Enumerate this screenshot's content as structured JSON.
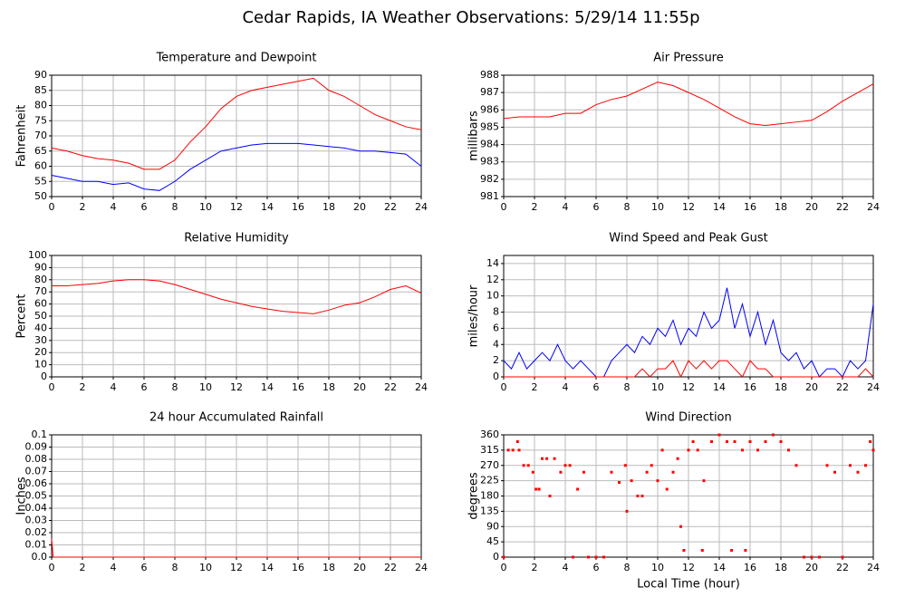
{
  "title": "Cedar Rapids, IA Weather Observations: 5/29/14 11:55p",
  "chart_data": [
    {
      "type": "line",
      "title": "Temperature and Dewpoint",
      "ylabel": "Fahrenheit",
      "xlim": [
        0,
        24
      ],
      "xticks": [
        0,
        2,
        4,
        6,
        8,
        10,
        12,
        14,
        16,
        18,
        20,
        22,
        24
      ],
      "ylim": [
        50,
        90
      ],
      "yticks": [
        50,
        55,
        60,
        65,
        70,
        75,
        80,
        85,
        90
      ],
      "grid": true,
      "x": [
        0,
        1,
        2,
        3,
        4,
        5,
        6,
        7,
        8,
        9,
        10,
        11,
        12,
        13,
        14,
        15,
        16,
        17,
        18,
        19,
        20,
        21,
        22,
        23,
        24
      ],
      "series": [
        {
          "color": "#ff0000",
          "values": [
            66,
            65,
            63.5,
            62.5,
            62,
            61,
            59,
            59,
            62,
            68,
            73,
            79,
            83,
            85,
            86,
            87,
            88,
            89,
            85,
            83,
            80,
            77,
            75,
            73,
            72
          ]
        },
        {
          "color": "#0000ff",
          "values": [
            57,
            56,
            55,
            55,
            54,
            54.5,
            52.5,
            52,
            55,
            59,
            62,
            65,
            66,
            67,
            67.5,
            67.5,
            67.5,
            67,
            66.5,
            66,
            65,
            65,
            64.5,
            64,
            60
          ]
        }
      ]
    },
    {
      "type": "line",
      "title": "Air Pressure",
      "ylabel": "millibars",
      "xlim": [
        0,
        24
      ],
      "xticks": [
        0,
        2,
        4,
        6,
        8,
        10,
        12,
        14,
        16,
        18,
        20,
        22,
        24
      ],
      "ylim": [
        981,
        988
      ],
      "yticks": [
        981,
        982,
        983,
        984,
        985,
        986,
        987,
        988
      ],
      "grid": true,
      "x": [
        0,
        1,
        2,
        3,
        4,
        5,
        6,
        7,
        8,
        9,
        10,
        11,
        12,
        13,
        14,
        15,
        16,
        17,
        18,
        19,
        20,
        21,
        22,
        23,
        24
      ],
      "series": [
        {
          "color": "#ff0000",
          "values": [
            985.5,
            985.6,
            985.6,
            985.6,
            985.8,
            985.8,
            986.3,
            986.6,
            986.8,
            987.2,
            987.6,
            987.4,
            987,
            986.6,
            986.1,
            985.6,
            985.2,
            985.1,
            985.2,
            985.3,
            985.4,
            985.9,
            986.5,
            987,
            987.5
          ]
        }
      ]
    },
    {
      "type": "line",
      "title": "Relative Humidity",
      "ylabel": "Percent",
      "xlim": [
        0,
        24
      ],
      "xticks": [
        0,
        2,
        4,
        6,
        8,
        10,
        12,
        14,
        16,
        18,
        20,
        22,
        24
      ],
      "ylim": [
        0,
        100
      ],
      "yticks": [
        0,
        10,
        20,
        30,
        40,
        50,
        60,
        70,
        80,
        90,
        100
      ],
      "grid": true,
      "x": [
        0,
        1,
        2,
        3,
        4,
        5,
        6,
        7,
        8,
        9,
        10,
        11,
        12,
        13,
        14,
        15,
        16,
        17,
        18,
        19,
        20,
        21,
        22,
        23,
        24
      ],
      "series": [
        {
          "color": "#ff0000",
          "values": [
            75,
            75,
            76,
            77,
            79,
            80,
            80,
            79,
            76,
            72,
            68,
            64,
            61,
            58,
            56,
            54,
            53,
            52,
            55,
            59,
            61,
            66,
            72,
            75,
            69
          ]
        }
      ]
    },
    {
      "type": "line",
      "title": "Wind Speed and Peak Gust",
      "ylabel": "miles/hour",
      "xlim": [
        0,
        24
      ],
      "xticks": [
        0,
        2,
        4,
        6,
        8,
        10,
        12,
        14,
        16,
        18,
        20,
        22,
        24
      ],
      "ylim": [
        0,
        15
      ],
      "yticks": [
        0,
        2,
        4,
        6,
        8,
        10,
        12,
        14
      ],
      "grid": true,
      "x": [
        0,
        0.5,
        1,
        1.5,
        2,
        2.5,
        3,
        3.5,
        4,
        4.5,
        5,
        5.5,
        6,
        6.5,
        7,
        7.5,
        8,
        8.5,
        9,
        9.5,
        10,
        10.5,
        11,
        11.5,
        12,
        12.5,
        13,
        13.5,
        14,
        14.5,
        15,
        15.5,
        16,
        16.5,
        17,
        17.5,
        18,
        18.5,
        19,
        19.5,
        20,
        20.5,
        21,
        21.5,
        22,
        22.5,
        23,
        23.5,
        24
      ],
      "series": [
        {
          "color": "#0000ff",
          "values": [
            2,
            1,
            3,
            1,
            2,
            3,
            2,
            4,
            2,
            1,
            2,
            1,
            0,
            0,
            2,
            3,
            4,
            3,
            5,
            4,
            6,
            5,
            7,
            4,
            6,
            5,
            8,
            6,
            7,
            11,
            6,
            9,
            5,
            8,
            4,
            7,
            3,
            2,
            3,
            1,
            2,
            0,
            1,
            1,
            0,
            2,
            1,
            2,
            9
          ]
        },
        {
          "color": "#ff0000",
          "values": [
            0,
            0,
            0,
            0,
            0,
            0,
            0,
            0,
            0,
            0,
            0,
            0,
            0,
            0,
            0,
            0,
            0,
            0,
            1,
            0,
            1,
            1,
            2,
            0,
            2,
            1,
            2,
            1,
            2,
            2,
            1,
            0,
            2,
            1,
            1,
            0,
            0,
            0,
            0,
            0,
            0,
            0,
            0,
            0,
            0,
            0,
            0,
            1,
            0
          ]
        }
      ]
    },
    {
      "type": "line",
      "title": "24 hour Accumulated Rainfall",
      "ylabel": "Inches",
      "xlim": [
        0,
        24
      ],
      "xticks": [
        0,
        2,
        4,
        6,
        8,
        10,
        12,
        14,
        16,
        18,
        20,
        22,
        24
      ],
      "ylim": [
        0,
        0.1
      ],
      "yticks": [
        {
          "value": 0,
          "label": "0.0"
        },
        0.01,
        0.02,
        0.03,
        0.04,
        0.05,
        0.06,
        0.07,
        0.08,
        0.09,
        0.1
      ],
      "grid": true,
      "x": [
        0,
        0.05,
        0.1,
        24
      ],
      "series": [
        {
          "color": "#ff0000",
          "values": [
            0.015,
            0.008,
            0,
            0
          ]
        }
      ]
    },
    {
      "type": "scatter",
      "title": "Wind Direction",
      "ylabel": "degrees",
      "xlabel": "Local Time (hour)",
      "xlim": [
        0,
        24
      ],
      "xticks": [
        0,
        2,
        4,
        6,
        8,
        10,
        12,
        14,
        16,
        18,
        20,
        22,
        24
      ],
      "ylim": [
        0,
        360
      ],
      "yticks": [
        0,
        45,
        90,
        135,
        180,
        225,
        270,
        315,
        360
      ],
      "grid": true,
      "x": [
        0,
        0.3,
        0.6,
        0.9,
        1,
        1.3,
        1.6,
        1.9,
        2.1,
        2.3,
        2.5,
        2.8,
        3,
        3.3,
        3.7,
        4,
        4.3,
        4.5,
        4.8,
        5.2,
        5.5,
        6,
        6.5,
        7,
        7.5,
        7.9,
        8,
        8.3,
        8.7,
        9,
        9.3,
        9.6,
        10,
        10.3,
        10.6,
        11,
        11.3,
        11.5,
        11.7,
        12,
        12.3,
        12.6,
        12.9,
        13,
        13.5,
        14,
        14.5,
        14.8,
        15,
        15.5,
        15.7,
        16,
        16.5,
        17,
        17.5,
        18,
        18.5,
        19,
        19.5,
        20,
        20.5,
        21,
        21.5,
        22,
        22.5,
        23,
        23.5,
        23.8,
        24
      ],
      "series": [
        {
          "color": "#ff0000",
          "values": [
            0,
            315,
            315,
            340,
            315,
            270,
            270,
            250,
            200,
            200,
            290,
            290,
            180,
            290,
            250,
            270,
            270,
            0,
            200,
            250,
            0,
            0,
            0,
            250,
            220,
            270,
            135,
            225,
            180,
            180,
            250,
            270,
            225,
            315,
            200,
            250,
            290,
            90,
            20,
            315,
            340,
            315,
            20,
            225,
            340,
            360,
            340,
            20,
            340,
            315,
            20,
            340,
            315,
            340,
            360,
            340,
            315,
            270,
            0,
            0,
            0,
            270,
            250,
            0,
            270,
            250,
            270,
            340,
            315
          ]
        }
      ]
    }
  ]
}
